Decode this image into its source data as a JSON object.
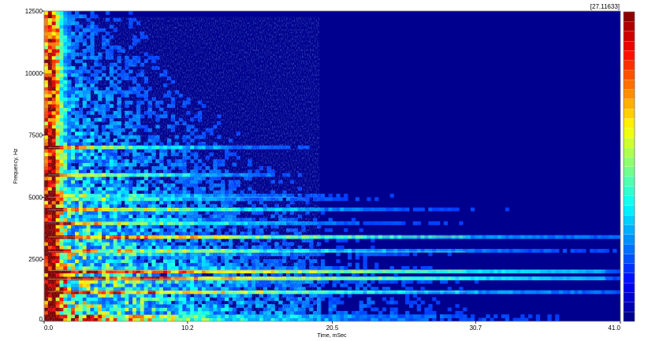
{
  "chart_data": {
    "type": "heatmap",
    "title": "",
    "xlabel": "Time, mSec",
    "ylabel": "Frequency, Hz",
    "xlim": [
      0.0,
      41.0
    ],
    "ylim": [
      0,
      12500
    ],
    "x_ticks": [
      "0.0",
      "10.2",
      "20.5",
      "30.7",
      "41.0"
    ],
    "x_tick_values": [
      0.0,
      10.2,
      20.5,
      30.7,
      41.0
    ],
    "y_ticks": [
      "0",
      "2500",
      "5000",
      "7500",
      "10000",
      "12500"
    ],
    "y_tick_values": [
      0,
      2500,
      5000,
      7500,
      10000,
      12500
    ],
    "colorbar": {
      "max_label": "[27.11633]",
      "max_value": 27.11633,
      "min_value": 0,
      "colormap": "jet",
      "levels": 32
    },
    "grid": false,
    "features": {
      "onset_time_ms": 0.5,
      "broadband_decay_to_ms": 14,
      "harmonic_bands_hz": [
        1200,
        1700,
        2050,
        2800,
        3400,
        4000,
        4500,
        5000,
        5900,
        7000
      ],
      "long_sustained_band_hz": [
        1700,
        2050
      ],
      "long_sustained_to_ms": 40
    }
  }
}
